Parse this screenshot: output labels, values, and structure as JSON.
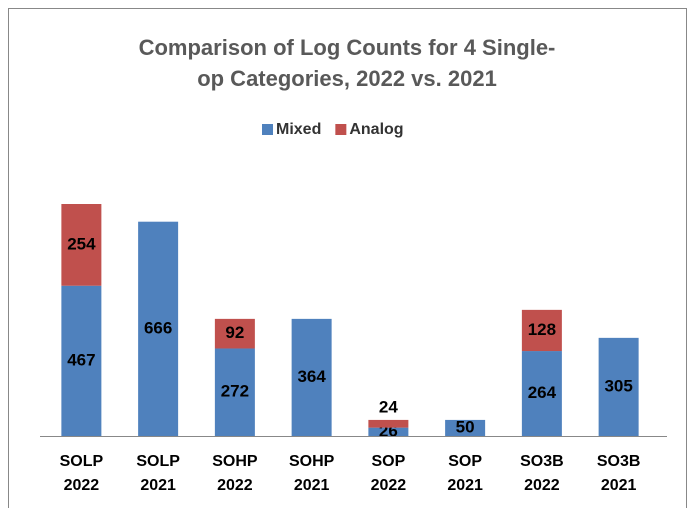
{
  "chart_data": {
    "type": "stacked_bar",
    "title": [
      "Comparison of Log Counts for 4 Single-",
      "op Categories, 2022 vs. 2021"
    ],
    "categories": [
      "SOLP 2022",
      "SOLP 2021",
      "SOHP 2022",
      "SOHP 2021",
      "SOP 2022",
      "SOP 2021",
      "SO3B 2022",
      "SO3B 2021"
    ],
    "series": [
      {
        "name": "Mixed",
        "color": "#4f81bd",
        "values": [
          467,
          666,
          272,
          364,
          26,
          50,
          264,
          305
        ]
      },
      {
        "name": "Analog",
        "color": "#c0504d",
        "values": [
          254,
          null,
          92,
          null,
          24,
          null,
          128,
          null
        ]
      }
    ],
    "legend": "top"
  }
}
